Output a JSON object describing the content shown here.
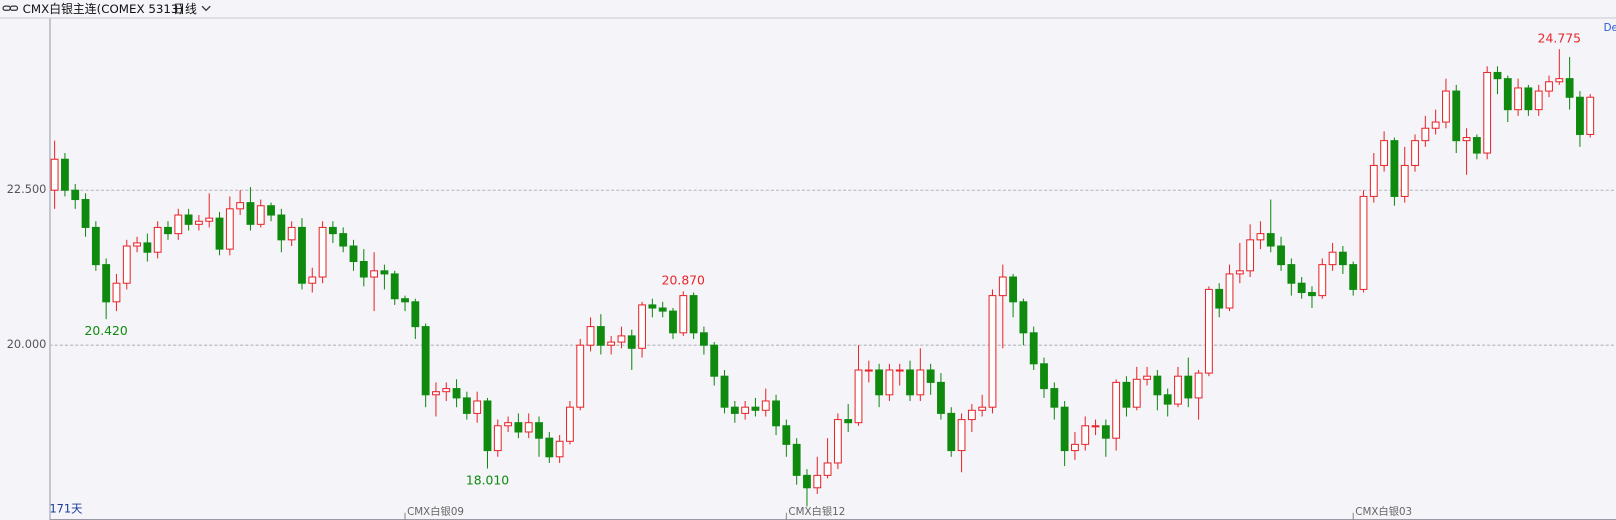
{
  "chart_data": {
    "type": "candlestick",
    "title": "CMX白银主连(COMEX 5313)",
    "period": "日线",
    "corner_label": "De",
    "period_label": "171天",
    "up_color": "#e8262b",
    "down_color": "#0f8a0f",
    "grid": true,
    "ylim": [
      17.18,
      25.27
    ],
    "yticks": [
      {
        "value": 20,
        "label": "20.000"
      },
      {
        "value": 22.5,
        "label": "22.500"
      }
    ],
    "categories": [
      null,
      null,
      null,
      null,
      null,
      null,
      null,
      null,
      null,
      null,
      null,
      null,
      null,
      null,
      null,
      null,
      null,
      null,
      null,
      null,
      null,
      null,
      null,
      null,
      null,
      null,
      null,
      null,
      null,
      null,
      null,
      null,
      null,
      null,
      "CMX白银09",
      null,
      null,
      null,
      null,
      null,
      null,
      null,
      null,
      null,
      null,
      null,
      null,
      null,
      null,
      null,
      null,
      null,
      null,
      null,
      null,
      null,
      null,
      null,
      null,
      null,
      null,
      null,
      null,
      null,
      null,
      null,
      null,
      null,
      null,
      null,
      null,
      "CMX白银12",
      null,
      null,
      null,
      null,
      null,
      null,
      null,
      null,
      null,
      null,
      null,
      null,
      null,
      null,
      null,
      null,
      null,
      null,
      null,
      null,
      null,
      null,
      null,
      null,
      null,
      null,
      null,
      null,
      null,
      null,
      null,
      null,
      null,
      null,
      null,
      null,
      null,
      null,
      null,
      null,
      null,
      null,
      null,
      null,
      null,
      null,
      null,
      null,
      null,
      null,
      null,
      null,
      null,
      null,
      "CMX白银03",
      null,
      null,
      null,
      null,
      null,
      null,
      null,
      null,
      null,
      null,
      null,
      null,
      null,
      null,
      null,
      null,
      null,
      null,
      null,
      null,
      null,
      null,
      null
    ],
    "open": [
      22.5,
      23.0,
      22.5,
      22.35,
      21.9,
      21.3,
      20.7,
      21.0,
      21.6,
      21.65,
      21.5,
      21.9,
      21.8,
      22.1,
      21.95,
      22.0,
      22.05,
      21.55,
      22.2,
      22.3,
      21.95,
      22.25,
      22.1,
      21.7,
      21.9,
      21.0,
      21.1,
      21.9,
      21.8,
      21.6,
      21.35,
      21.1,
      21.2,
      21.15,
      20.75,
      20.7,
      20.3,
      19.2,
      19.25,
      19.3,
      19.15,
      18.9,
      19.1,
      18.3,
      18.7,
      18.75,
      18.6,
      18.75,
      18.5,
      18.2,
      18.45,
      19.0,
      20.0,
      20.3,
      20.0,
      20.05,
      20.15,
      19.95,
      20.65,
      20.6,
      20.55,
      20.2,
      20.8,
      20.2,
      20.0,
      19.5,
      19.0,
      18.9,
      19.0,
      18.95,
      19.1,
      18.7,
      18.4,
      17.9,
      17.7,
      17.9,
      18.1,
      18.8,
      18.75,
      19.6,
      19.6,
      19.2,
      19.6,
      19.6,
      19.2,
      19.6,
      19.4,
      18.9,
      18.3,
      18.8,
      18.95,
      19.0,
      20.8,
      21.1,
      20.7,
      20.2,
      19.7,
      19.3,
      19.0,
      18.3,
      18.4,
      18.7,
      18.7,
      18.5,
      19.4,
      19.0,
      19.45,
      19.5,
      19.2,
      19.05,
      19.5,
      19.15,
      19.55,
      20.9,
      20.6,
      21.15,
      21.2,
      21.7,
      21.8,
      21.6,
      21.3,
      21.0,
      20.85,
      20.8,
      21.3,
      21.5,
      21.3,
      20.9,
      22.4,
      22.9,
      23.3,
      22.4,
      22.9,
      23.3,
      23.5,
      23.6,
      24.1,
      23.3,
      23.35,
      23.1,
      24.4,
      24.3,
      23.8,
      24.15,
      23.8,
      24.1,
      24.25,
      24.3,
      24.0,
      23.4
    ],
    "high": [
      23.3,
      23.1,
      22.6,
      22.45,
      22.0,
      21.4,
      21.15,
      21.7,
      21.75,
      21.8,
      22.0,
      22.0,
      22.2,
      22.2,
      22.1,
      22.45,
      22.15,
      22.4,
      22.5,
      22.55,
      22.35,
      22.3,
      22.2,
      22.0,
      22.05,
      21.25,
      22.0,
      22.0,
      21.9,
      21.7,
      21.55,
      21.5,
      21.3,
      21.2,
      20.8,
      20.75,
      20.35,
      19.4,
      19.4,
      19.45,
      19.25,
      19.25,
      19.15,
      18.8,
      18.85,
      18.9,
      18.9,
      18.85,
      18.6,
      18.55,
      19.1,
      20.1,
      20.45,
      20.5,
      20.15,
      20.3,
      20.25,
      20.7,
      20.75,
      20.7,
      20.6,
      20.87,
      20.85,
      20.3,
      20.05,
      19.6,
      19.1,
      19.1,
      19.15,
      19.3,
      19.2,
      18.8,
      18.5,
      18.0,
      18.2,
      18.5,
      18.9,
      19.05,
      20.0,
      19.75,
      19.7,
      19.7,
      19.7,
      19.75,
      19.95,
      19.7,
      19.55,
      19.0,
      18.9,
      19.05,
      19.2,
      20.9,
      21.3,
      21.15,
      20.75,
      20.3,
      19.8,
      19.4,
      19.1,
      18.6,
      18.85,
      18.8,
      18.8,
      19.45,
      19.5,
      19.65,
      19.65,
      19.6,
      19.3,
      19.65,
      19.8,
      19.6,
      20.95,
      21.0,
      21.3,
      21.65,
      21.95,
      22.0,
      22.35,
      21.75,
      21.4,
      21.1,
      20.95,
      21.4,
      21.65,
      21.6,
      21.35,
      22.5,
      23.1,
      23.45,
      23.35,
      23.2,
      23.4,
      23.7,
      23.8,
      24.3,
      24.2,
      23.5,
      23.4,
      24.5,
      24.5,
      24.35,
      24.3,
      24.2,
      24.2,
      24.35,
      24.775,
      24.65,
      24.1,
      24.05
    ],
    "low": [
      22.2,
      22.4,
      22.2,
      21.75,
      21.2,
      20.42,
      20.55,
      20.9,
      21.5,
      21.35,
      21.4,
      21.7,
      21.7,
      21.85,
      21.85,
      21.9,
      21.45,
      21.45,
      22.1,
      21.85,
      21.9,
      22.0,
      21.5,
      21.6,
      20.9,
      20.85,
      21.0,
      21.65,
      21.5,
      21.2,
      20.95,
      20.55,
      20.9,
      20.65,
      20.55,
      20.1,
      19.0,
      18.85,
      19.1,
      19.0,
      18.8,
      18.75,
      18.01,
      18.2,
      18.6,
      18.5,
      18.5,
      18.2,
      18.1,
      18.1,
      18.4,
      18.95,
      19.9,
      19.85,
      19.85,
      19.95,
      19.6,
      19.8,
      20.45,
      20.45,
      20.1,
      20.15,
      20.1,
      19.85,
      19.35,
      18.9,
      18.75,
      18.8,
      18.85,
      18.85,
      18.55,
      18.2,
      17.75,
      17.4,
      17.6,
      17.85,
      18.0,
      18.6,
      18.7,
      19.4,
      19.0,
      19.1,
      19.35,
      19.1,
      19.1,
      19.2,
      18.8,
      18.2,
      17.95,
      18.6,
      18.85,
      18.9,
      19.95,
      20.45,
      20.0,
      19.6,
      19.15,
      18.8,
      18.05,
      18.15,
      18.3,
      18.55,
      18.2,
      18.3,
      18.85,
      18.95,
      19.35,
      18.95,
      18.85,
      19.0,
      19.0,
      18.8,
      19.5,
      20.45,
      20.55,
      21.0,
      21.1,
      21.55,
      21.5,
      21.2,
      20.8,
      20.75,
      20.6,
      20.75,
      21.2,
      21.15,
      20.8,
      20.85,
      22.3,
      22.8,
      22.25,
      22.3,
      22.8,
      23.2,
      23.4,
      23.5,
      23.1,
      22.75,
      23.0,
      23.0,
      24.05,
      23.6,
      23.7,
      23.7,
      23.7,
      24.0,
      24.2,
      23.8,
      23.2,
      23.35
    ],
    "close": [
      23.0,
      22.5,
      22.35,
      21.9,
      21.3,
      20.7,
      21.0,
      21.6,
      21.65,
      21.5,
      21.9,
      21.8,
      22.1,
      21.95,
      22.0,
      22.05,
      21.55,
      22.2,
      22.3,
      21.95,
      22.25,
      22.1,
      21.7,
      21.9,
      21.0,
      21.1,
      21.9,
      21.8,
      21.6,
      21.35,
      21.1,
      21.2,
      21.15,
      20.75,
      20.7,
      20.3,
      19.2,
      19.25,
      19.3,
      19.15,
      18.9,
      19.1,
      18.3,
      18.7,
      18.75,
      18.6,
      18.75,
      18.5,
      18.2,
      18.45,
      19.0,
      20.0,
      20.3,
      20.0,
      20.05,
      20.15,
      19.95,
      20.65,
      20.6,
      20.55,
      20.2,
      20.8,
      20.2,
      20.0,
      19.5,
      19.0,
      18.9,
      19.0,
      18.95,
      19.1,
      18.7,
      18.4,
      17.9,
      17.7,
      17.9,
      18.1,
      18.8,
      18.75,
      19.6,
      19.6,
      19.2,
      19.6,
      19.6,
      19.2,
      19.6,
      19.4,
      18.9,
      18.3,
      18.8,
      18.95,
      19.0,
      20.8,
      21.1,
      20.7,
      20.2,
      19.7,
      19.3,
      19.0,
      18.3,
      18.4,
      18.7,
      18.7,
      18.5,
      19.4,
      19.0,
      19.45,
      19.5,
      19.2,
      19.05,
      19.5,
      19.15,
      19.55,
      20.9,
      20.6,
      21.15,
      21.2,
      21.7,
      21.8,
      21.6,
      21.3,
      21.0,
      20.85,
      20.8,
      21.3,
      21.5,
      21.3,
      20.9,
      22.4,
      22.9,
      23.3,
      22.4,
      22.9,
      23.3,
      23.5,
      23.6,
      24.1,
      23.3,
      23.35,
      23.1,
      24.4,
      24.3,
      23.8,
      24.15,
      23.8,
      24.1,
      24.25,
      24.3,
      24.0,
      23.4,
      24.0
    ],
    "annotations": [
      {
        "value": 20.42,
        "label": "20.420"
      },
      {
        "value": 18.01,
        "label": "18.010"
      },
      {
        "value": 20.87,
        "label": "20.870"
      },
      {
        "value": 24.775,
        "label": "24.775"
      }
    ]
  }
}
